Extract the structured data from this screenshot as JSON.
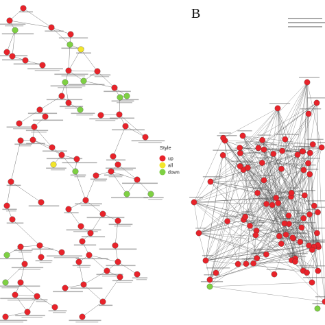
{
  "panel_b": {
    "letter": "B"
  },
  "legend": {
    "title": "Style",
    "items": [
      {
        "label": "up",
        "color": "#e8232a"
      },
      {
        "label": "all",
        "color": "#f2e52b"
      },
      {
        "label": "down",
        "color": "#7ed043"
      }
    ]
  },
  "colors": {
    "up": "#e8232a",
    "all": "#f2e52b",
    "down": "#7ed043",
    "edge": "#666666"
  }
}
